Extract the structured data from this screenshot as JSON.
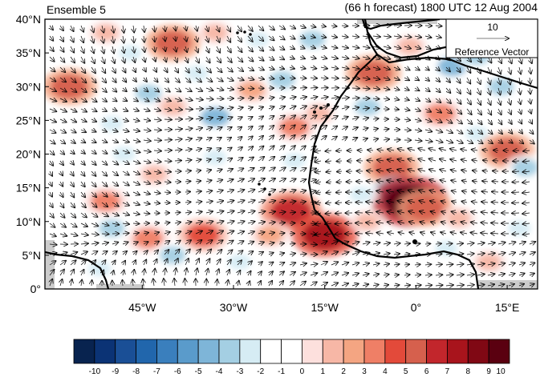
{
  "chart_data": {
    "type": "heatmap",
    "title_left": "Ensemble 5",
    "title_right": "(66 h forecast) 1800 UTC 12 Aug 2004",
    "x_ticks": [
      "45°W",
      "30°W",
      "15°W",
      "0°",
      "15°E"
    ],
    "x_tick_values": [
      -45,
      -30,
      -15,
      0,
      15
    ],
    "y_ticks": [
      "0°",
      "5°N",
      "10°N",
      "15°N",
      "20°N",
      "25°N",
      "30°N",
      "35°N",
      "40°N"
    ],
    "y_tick_values": [
      0,
      5,
      10,
      15,
      20,
      25,
      30,
      35,
      40
    ],
    "xlim": [
      -61,
      20
    ],
    "ylim": [
      0,
      40
    ],
    "reference_vector": {
      "magnitude": "10",
      "label": "Reference Vector"
    },
    "colorbar": {
      "labels": [
        "-10",
        "-9",
        "-8",
        "-7",
        "-6",
        "-5",
        "-4",
        "-3",
        "-2",
        "-1",
        "0",
        "1",
        "2",
        "3",
        "4",
        "5",
        "6",
        "7",
        "8",
        "9",
        "10"
      ],
      "colors": [
        "#08234f",
        "#0b3375",
        "#1a4f96",
        "#2166ac",
        "#3a7fbd",
        "#5a9bcb",
        "#7eb5d8",
        "#a4cfe3",
        "#d6ecf4",
        "#ffffff",
        "#ffffff",
        "#fde0dd",
        "#f7b7a6",
        "#f4a582",
        "#ef7f66",
        "#e34a3a",
        "#d6604d",
        "#c2262c",
        "#a8141c",
        "#800814",
        "#5a0010"
      ]
    },
    "anomalies": [
      {
        "lon": -57,
        "lat": 30,
        "value": 6
      },
      {
        "lon": -40,
        "lat": 36.5,
        "value": 6
      },
      {
        "lon": -33,
        "lat": 38,
        "value": 2
      },
      {
        "lon": -51,
        "lat": 38,
        "value": 2
      },
      {
        "lon": -47,
        "lat": 35,
        "value": -2
      },
      {
        "lon": -26,
        "lat": 37,
        "value": -2
      },
      {
        "lon": -17,
        "lat": 37,
        "value": -3
      },
      {
        "lon": -44,
        "lat": 29,
        "value": -3
      },
      {
        "lon": -36,
        "lat": 32,
        "value": -2
      },
      {
        "lon": -33,
        "lat": 25.5,
        "value": -4
      },
      {
        "lon": -50,
        "lat": 24.5,
        "value": -2
      },
      {
        "lon": -40,
        "lat": 27,
        "value": 2
      },
      {
        "lon": -27,
        "lat": 29.5,
        "value": 3
      },
      {
        "lon": -20,
        "lat": 24,
        "value": 4
      },
      {
        "lon": -16,
        "lat": 26,
        "value": 2
      },
      {
        "lon": -22,
        "lat": 31,
        "value": -3
      },
      {
        "lon": -48,
        "lat": 20,
        "value": -2
      },
      {
        "lon": -33,
        "lat": 19.5,
        "value": -2
      },
      {
        "lon": -20,
        "lat": 19,
        "value": -2
      },
      {
        "lon": -43,
        "lat": 17,
        "value": 2
      },
      {
        "lon": -51,
        "lat": 13,
        "value": 4
      },
      {
        "lon": -20.5,
        "lat": 11.5,
        "value": 7
      },
      {
        "lon": -15,
        "lat": 8,
        "value": 8
      },
      {
        "lon": -24,
        "lat": 8,
        "value": 3
      },
      {
        "lon": -35,
        "lat": 8,
        "value": 5
      },
      {
        "lon": -44,
        "lat": 7.5,
        "value": 4
      },
      {
        "lon": -50,
        "lat": 9,
        "value": -3
      },
      {
        "lon": -40,
        "lat": 5,
        "value": -3
      },
      {
        "lon": -29,
        "lat": 4,
        "value": -2
      },
      {
        "lon": -52,
        "lat": 3,
        "value": -2
      },
      {
        "lon": -7,
        "lat": 32,
        "value": 6
      },
      {
        "lon": 6,
        "lat": 33,
        "value": -4
      },
      {
        "lon": 10,
        "lat": 34.5,
        "value": -3
      },
      {
        "lon": 14,
        "lat": 30,
        "value": -3
      },
      {
        "lon": -1,
        "lat": 36,
        "value": 2
      },
      {
        "lon": 4,
        "lat": 26,
        "value": 4
      },
      {
        "lon": -8,
        "lat": 27,
        "value": -3
      },
      {
        "lon": 10,
        "lat": 23,
        "value": -2
      },
      {
        "lon": -4,
        "lat": 18,
        "value": 6
      },
      {
        "lon": 15,
        "lat": 20.5,
        "value": 6
      },
      {
        "lon": 18,
        "lat": 18,
        "value": -3
      },
      {
        "lon": -3,
        "lat": 14,
        "value": -6
      },
      {
        "lon": -1,
        "lat": 13,
        "value": 10
      },
      {
        "lon": 1.5,
        "lat": 12,
        "value": 6
      },
      {
        "lon": -9,
        "lat": 14,
        "value": -2
      },
      {
        "lon": 7,
        "lat": 10.5,
        "value": 2
      },
      {
        "lon": 12,
        "lat": 4,
        "value": 2
      },
      {
        "lon": 5,
        "lat": 6,
        "value": -2
      },
      {
        "lon": -8,
        "lat": 10,
        "value": 2
      },
      {
        "lon": 17,
        "lat": 9,
        "value": -2
      }
    ],
    "land_mask_color": "#cccccc"
  }
}
